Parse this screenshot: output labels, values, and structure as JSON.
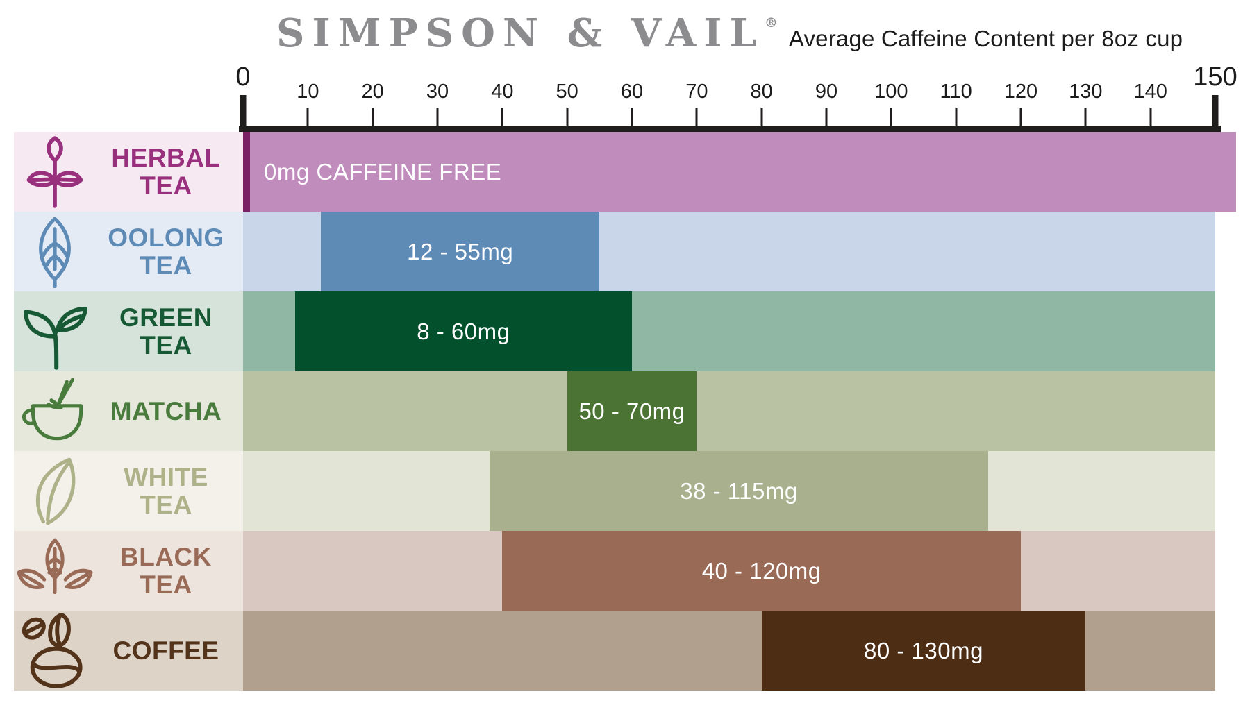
{
  "header": {
    "brand": "SIMPSON & VAIL",
    "registered": "®",
    "subtitle": "Average Caffeine Content per 8oz cup"
  },
  "chart_data": {
    "type": "bar",
    "orientation": "horizontal",
    "title": "Average Caffeine Content per 8oz cup",
    "x_axis": {
      "min": 0,
      "max": 150,
      "tick_step": 10,
      "ticks": [
        0,
        10,
        20,
        30,
        40,
        50,
        60,
        70,
        80,
        90,
        100,
        110,
        120,
        130,
        140,
        150
      ],
      "unit": "mg",
      "line_color": "#201d1d"
    },
    "rows": [
      {
        "id": "herbal-tea",
        "label": "HERBAL TEA",
        "label_lines": [
          "HERBAL",
          "TEA"
        ],
        "icon": "herbal-tea-plant-icon",
        "caffeine_min_mg": 0,
        "caffeine_max_mg": 0,
        "bar_start": 0,
        "bar_end": 150,
        "value_label": "0mg CAFFEINE FREE",
        "text_align": "left",
        "bar_color": "#bf8cbc",
        "track_color": "#bf8cbc",
        "label_bg": "#f6e9f2",
        "label_color": "#99307d",
        "zero_stripe_color": "#7a2166"
      },
      {
        "id": "oolong-tea",
        "label": "OOLONG TEA",
        "label_lines": [
          "OOLONG",
          "TEA"
        ],
        "icon": "oolong-leaf-icon",
        "caffeine_min_mg": 12,
        "caffeine_max_mg": 55,
        "bar_start": 12,
        "bar_end": 55,
        "value_label": "12 - 55mg",
        "text_align": "center",
        "bar_color": "#5e8ab6",
        "track_color": "#c9d5e8",
        "label_bg": "#e4ebf5",
        "label_color": "#5e8ab6"
      },
      {
        "id": "green-tea",
        "label": "GREEN TEA",
        "label_lines": [
          "GREEN",
          "TEA"
        ],
        "icon": "green-tea-sprout-icon",
        "caffeine_min_mg": 8,
        "caffeine_max_mg": 60,
        "bar_start": 8,
        "bar_end": 60,
        "value_label": "8 - 60mg",
        "text_align": "center",
        "bar_color": "#03502d",
        "track_color": "#90b7a4",
        "label_bg": "#d6e3da",
        "label_color": "#175934"
      },
      {
        "id": "matcha",
        "label": "MATCHA",
        "label_lines": [
          "MATCHA"
        ],
        "icon": "matcha-bowl-whisk-icon",
        "caffeine_min_mg": 50,
        "caffeine_max_mg": 70,
        "bar_start": 50,
        "bar_end": 70,
        "value_label": "50 - 70mg",
        "text_align": "center",
        "bar_color": "#4a7334",
        "track_color": "#b9c2a3",
        "label_bg": "#e5e8da",
        "label_color": "#497b3c"
      },
      {
        "id": "white-tea",
        "label": "WHITE TEA",
        "label_lines": [
          "WHITE",
          "TEA"
        ],
        "icon": "white-tea-leaf-icon",
        "caffeine_min_mg": 38,
        "caffeine_max_mg": 115,
        "bar_start": 38,
        "bar_end": 115,
        "value_label": "38 - 115mg",
        "text_align": "center",
        "bar_color": "#a8b08d",
        "track_color": "#e2e4d5",
        "label_bg": "#f4f1eb",
        "label_color": "#adb289"
      },
      {
        "id": "black-tea",
        "label": "BLACK TEA",
        "label_lines": [
          "BLACK",
          "TEA"
        ],
        "icon": "black-tea-leaves-icon",
        "caffeine_min_mg": 40,
        "caffeine_max_mg": 120,
        "bar_start": 40,
        "bar_end": 120,
        "value_label": "40 - 120mg",
        "text_align": "center",
        "bar_color": "#996b57",
        "track_color": "#d9c8c2",
        "label_bg": "#ede4dd",
        "label_color": "#996b57"
      },
      {
        "id": "coffee",
        "label": "COFFEE",
        "label_lines": [
          "COFFEE"
        ],
        "icon": "coffee-beans-icon",
        "caffeine_min_mg": 80,
        "caffeine_max_mg": 130,
        "bar_start": 80,
        "bar_end": 130,
        "value_label": "80 - 130mg",
        "text_align": "center",
        "bar_color": "#4e2d15",
        "track_color": "#b2a08e",
        "label_bg": "#ddd3c7",
        "label_color": "#53331a"
      }
    ]
  }
}
